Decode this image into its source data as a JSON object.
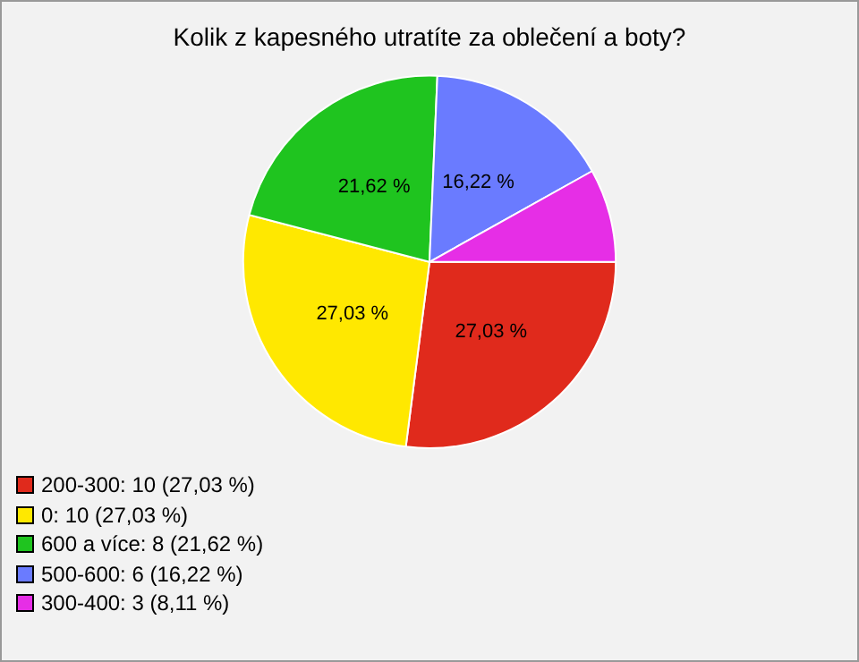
{
  "chart_data": {
    "type": "pie",
    "title": "Kolik z kapesného utratíte za oblečení a boty?",
    "categories": [
      "200-300: 10 (27,03 %)",
      "0: 10 (27,03 %)",
      "600 a více: 8 (21,62 %)",
      "500-600: 6 (16,22 %)",
      "300-400: 3 (8,11 %)"
    ],
    "values": [
      27.03,
      27.03,
      21.62,
      16.22,
      8.11
    ],
    "colors": [
      "#e02a1c",
      "#ffe800",
      "#1fc41f",
      "#6a7bff",
      "#e62ee6"
    ],
    "value_labels": [
      "27,03 %",
      "27,03 %",
      "21,62 %",
      "16,22 %",
      null
    ],
    "legend": "bottom left"
  }
}
